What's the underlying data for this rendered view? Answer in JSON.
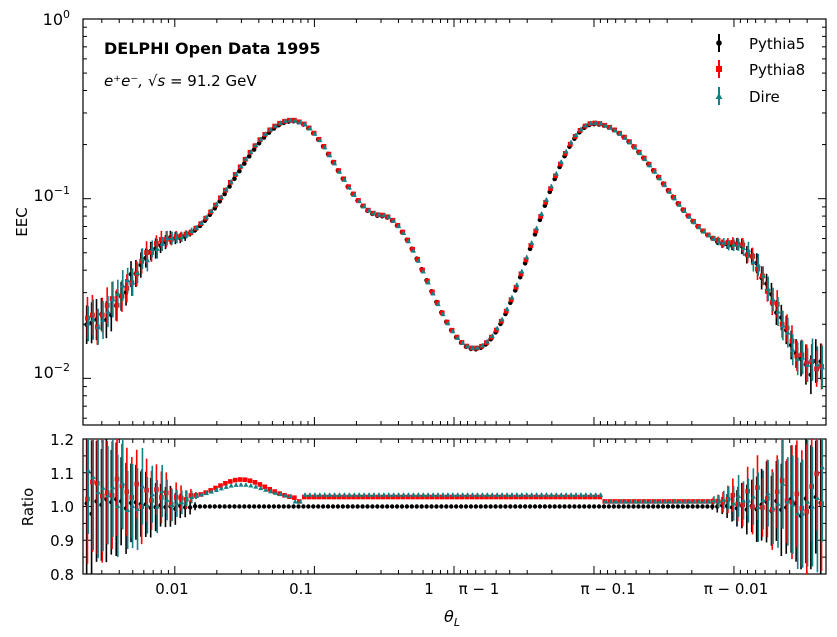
{
  "chart_data": {
    "type": "scatter",
    "title": "DELPHI Open Data 1995",
    "subtitle_prefix": "e⁺e⁻, ",
    "subtitle_sqrt": "√s",
    "subtitle_suffix": " = 91.2 GeV",
    "ylabel": "EEC",
    "ratio_ylabel": "Ratio",
    "xlabel": "θ",
    "xlabel_sub": "L",
    "ylim": [
      0.0055,
      1.0
    ],
    "ratio_ylim": [
      0.8,
      1.2
    ],
    "y_ticks": [
      {
        "label": "10",
        "exp": "0",
        "value": 1.0
      },
      {
        "label": "10",
        "exp": "−1",
        "value": 0.1
      },
      {
        "label": "10",
        "exp": "−2",
        "value": 0.01
      }
    ],
    "ratio_ticks": [
      "0.8",
      "0.9",
      "1.0",
      "1.1",
      "1.2"
    ],
    "x_ticks": [
      "0.01",
      "0.1",
      "1",
      "π − 1",
      "π − 0.1",
      "π − 0.01"
    ],
    "legend": [
      {
        "name": "Pythia5",
        "color": "#000000"
      },
      {
        "name": "Pythia8",
        "color": "#ff0000"
      },
      {
        "name": "Dire",
        "color": "#138086"
      }
    ],
    "x_axis_note": "symmetric log axis: θ from 0.0022 up to 1 on the left half, π − θ from 1 down to 0.0022 on the right half",
    "x_range": [
      0.0022,
      1.0
    ],
    "reference_points": [
      {
        "theta": 0.0022,
        "eec": 0.019
      },
      {
        "theta": 0.01,
        "eec": 0.06
      },
      {
        "theta": 0.07,
        "eec": 0.27
      },
      {
        "theta": 0.3,
        "eec": 0.08
      },
      {
        "theta": 1.4,
        "eec": 0.0145
      },
      {
        "pi_minus_theta": 0.1,
        "eec": 0.26
      },
      {
        "pi_minus_theta": 0.01,
        "eec": 0.055
      },
      {
        "pi_minus_theta": 0.0025,
        "eec": 0.011
      }
    ],
    "series": [
      {
        "name": "Pythia5",
        "ratio_offset": 0.0
      },
      {
        "name": "Pythia8",
        "ratio_offset_peak": 0.08,
        "ratio_offset_mid": 0.03
      },
      {
        "name": "Dire",
        "ratio_offset_peak": 0.06,
        "ratio_offset_mid": 0.04
      }
    ]
  }
}
